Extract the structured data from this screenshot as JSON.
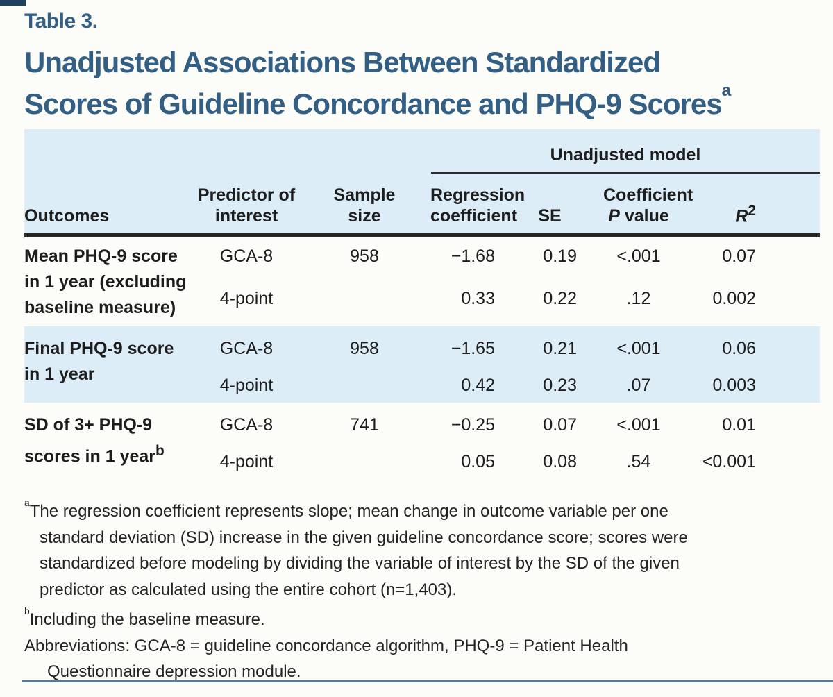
{
  "page": {
    "table_label": "Table 3.",
    "title_line1": "Unadjusted Associations Between Standardized",
    "title_line2": "Scores of Guideline Concordance and PHQ-9 Scores",
    "title_sup": "a",
    "accent_color": "#335f85",
    "band_color": "#ddedf8",
    "rule_color": "#56799c"
  },
  "table": {
    "span_header": "Unadjusted model",
    "columns": {
      "outcomes": "Outcomes",
      "predictor_line1": "Predictor of",
      "predictor_line2": "interest",
      "sample_line1": "Sample",
      "sample_line2": "size",
      "reg_line1": "Regression",
      "reg_line2": "coefficient",
      "se": "SE",
      "coef_line1": "Coefficient",
      "coef_p_italic": "P",
      "coef_p_rest": " value",
      "r_italic": "R",
      "r_sup": "2"
    },
    "groups": [
      {
        "outcome_lines": [
          "Mean PHQ-9 score",
          "in 1 year (excluding",
          "baseline measure)"
        ],
        "outcome_sup": "",
        "rows": [
          {
            "predictor": "GCA-8",
            "n": "958",
            "coef": "−1.68",
            "se": "0.19",
            "p": "<.001",
            "r2": "0.07"
          },
          {
            "predictor": "4-point",
            "n": "",
            "coef": "0.33",
            "se": "0.22",
            "p": ".12",
            "r2": "0.002"
          }
        ]
      },
      {
        "outcome_lines": [
          "Final PHQ-9 score",
          "in 1 year"
        ],
        "outcome_sup": "",
        "rows": [
          {
            "predictor": "GCA-8",
            "n": "958",
            "coef": "−1.65",
            "se": "0.21",
            "p": "<.001",
            "r2": "0.06"
          },
          {
            "predictor": "4-point",
            "n": "",
            "coef": "0.42",
            "se": "0.23",
            "p": ".07",
            "r2": "0.003"
          }
        ]
      },
      {
        "outcome_lines": [
          "SD of 3+ PHQ-9",
          "scores in 1 year"
        ],
        "outcome_sup": "b",
        "rows": [
          {
            "predictor": "GCA-8",
            "n": "741",
            "coef": "−0.25",
            "se": "0.07",
            "p": "<.001",
            "r2": "0.01"
          },
          {
            "predictor": "4-point",
            "n": "",
            "coef": "0.05",
            "se": "0.08",
            "p": ".54",
            "r2": "<0.001"
          }
        ]
      }
    ]
  },
  "footnotes": {
    "a_sup": "a",
    "a_line1": "The regression coefficient represents slope; mean change in outcome variable per one",
    "a_line2": "standard deviation (SD) increase in the given guideline concordance score; scores were",
    "a_line3": "standardized before modeling by dividing the variable of interest by the SD of the given",
    "a_line4": "predictor as calculated using the entire cohort (n=1,403).",
    "b_sup": "b",
    "b_text": "Including the baseline measure.",
    "abbr_line1": "Abbreviations: GCA-8 = guideline concordance algorithm, PHQ-9 = Patient Health",
    "abbr_line2": "Questionnaire depression module."
  }
}
